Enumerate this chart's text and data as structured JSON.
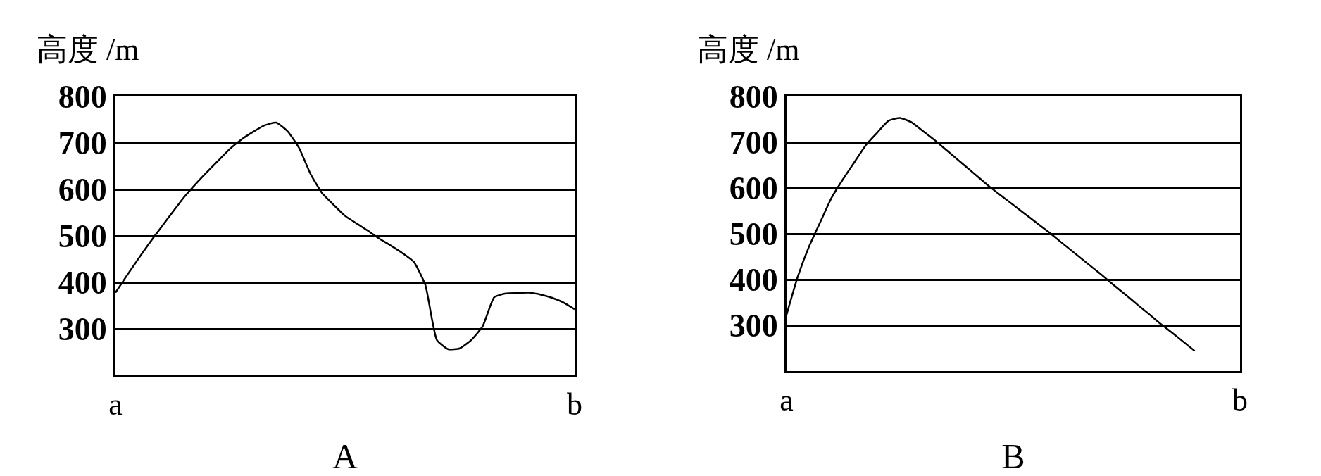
{
  "chart_data": [
    {
      "type": "line",
      "xlabel": "A",
      "ylabel": "高度 /m",
      "ylim": [
        200,
        800
      ],
      "yticks": [
        300,
        400,
        500,
        600,
        700,
        800
      ],
      "grid": "y",
      "marker": "none",
      "line_style": "solid",
      "categories": [
        "a",
        null,
        null,
        null,
        null,
        null,
        null,
        null,
        null,
        null,
        null,
        null,
        null,
        null,
        null,
        null,
        null,
        null,
        null,
        null,
        null,
        null,
        null,
        null,
        null,
        null,
        null,
        null,
        null,
        null,
        null,
        null,
        null,
        null,
        null,
        null,
        null,
        null,
        null,
        null,
        "b"
      ],
      "series": [
        {
          "color": "#000000",
          "values": [
            378,
            415,
            451,
            486,
            519,
            552,
            584,
            612,
            638,
            663,
            688,
            708,
            724,
            738,
            744,
            725,
            689,
            633,
            592,
            567,
            543,
            527,
            511,
            494,
            479,
            463,
            444,
            394,
            276,
            256,
            258,
            276,
            306,
            368,
            376,
            377,
            378,
            374,
            367,
            357,
            342
          ]
        }
      ]
    },
    {
      "type": "line",
      "xlabel": "B",
      "ylabel": "高度 /m",
      "ylim": [
        200,
        800
      ],
      "yticks": [
        300,
        400,
        500,
        600,
        700,
        800
      ],
      "grid": "y",
      "marker": "none",
      "line_style": "solid",
      "categories": [
        "a",
        null,
        null,
        null,
        null,
        null,
        null,
        null,
        null,
        null,
        null,
        null,
        null,
        null,
        null,
        null,
        null,
        null,
        null,
        null,
        null,
        null,
        null,
        null,
        null,
        null,
        null,
        null,
        null,
        null,
        null,
        null,
        null,
        null,
        null,
        null,
        null,
        null,
        null,
        null,
        "b"
      ],
      "series": [
        {
          "color": "#000000",
          "values": [
            323,
            407,
            473,
            527,
            580,
            620,
            657,
            694,
            721,
            747,
            753,
            744,
            725,
            706,
            685,
            664,
            643,
            622,
            601,
            582,
            563,
            544,
            525,
            506,
            486,
            466,
            446,
            426,
            406,
            385,
            365,
            344,
            324,
            303,
            284,
            264,
            244,
            null,
            null,
            null,
            null
          ]
        }
      ]
    }
  ]
}
